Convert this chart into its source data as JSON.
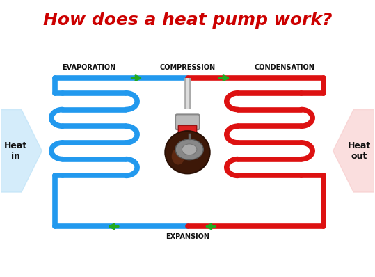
{
  "title": "How does a heat pump work?",
  "title_color": "#cc0000",
  "title_fontsize": 18,
  "bg_color": "#ffffff",
  "blue_color": "#2299ee",
  "red_color": "#dd1111",
  "green_color": "#22aa22",
  "label_evaporation": "EVAPORATION",
  "label_compression": "COMPRESSION",
  "label_condensation": "CONDENSATION",
  "label_expansion": "EXPANSION",
  "label_heat_in": "Heat\nin",
  "label_heat_out": "Heat\nout",
  "lw": 5.5,
  "fig_width": 5.39,
  "fig_height": 3.98,
  "dpi": 100
}
